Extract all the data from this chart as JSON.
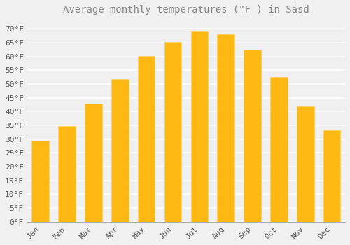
{
  "title": "Average monthly temperatures (°F ) in Sásd",
  "months": [
    "Jan",
    "Feb",
    "Mar",
    "Apr",
    "May",
    "Jun",
    "Jul",
    "Aug",
    "Sep",
    "Oct",
    "Nov",
    "Dec"
  ],
  "values": [
    29.5,
    34.7,
    43.0,
    51.8,
    60.3,
    65.3,
    69.1,
    68.0,
    62.4,
    52.5,
    41.9,
    33.3
  ],
  "bar_color": "#FDB813",
  "bar_edge_color": "#FFD060",
  "background_color": "#F0F0F0",
  "grid_color": "#FFFFFF",
  "text_color": "#888888",
  "tick_label_color": "#555555",
  "ylim": [
    0,
    73
  ],
  "yticks": [
    0,
    5,
    10,
    15,
    20,
    25,
    30,
    35,
    40,
    45,
    50,
    55,
    60,
    65,
    70
  ],
  "title_fontsize": 10,
  "tick_fontsize": 8,
  "font_family": "monospace"
}
